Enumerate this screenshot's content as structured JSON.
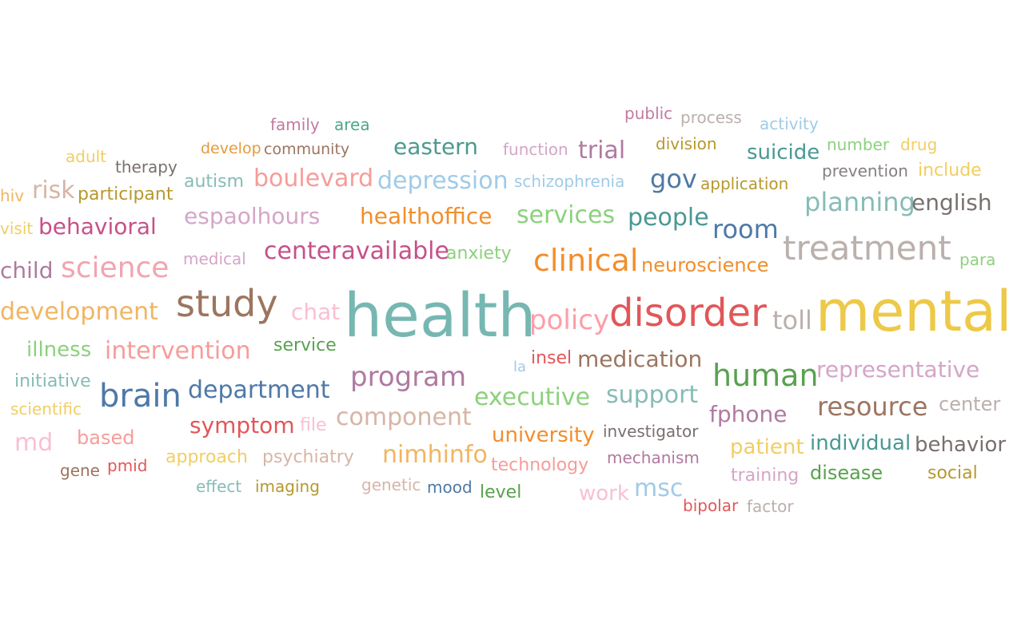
{
  "palette": {
    "teal": "#76b7b2",
    "gold": "#edc948",
    "red": "#e15759",
    "brown": "#9c755f",
    "blue": "#4e79a7",
    "orange": "#f28e2b",
    "green": "#59a14f",
    "pink": "#ff9da7",
    "purple": "#b07aa1",
    "gray": "#bab0ac"
  },
  "words": [
    {
      "text": "family",
      "color": "#c47aa0"
    },
    {
      "text": "area",
      "color": "#4ea68a"
    },
    {
      "text": "public",
      "color": "#c47aa0"
    },
    {
      "text": "process",
      "color": "#bab0ac"
    },
    {
      "text": "activity",
      "color": "#a0cbe8"
    },
    {
      "text": "adult",
      "color": "#f1ce63"
    },
    {
      "text": "develop",
      "color": "#e59b3a"
    },
    {
      "text": "community",
      "color": "#9c755f"
    },
    {
      "text": "eastern",
      "color": "#4c9a8e"
    },
    {
      "text": "function",
      "color": "#d4a6c8"
    },
    {
      "text": "trial",
      "color": "#b07aa1"
    },
    {
      "text": "division",
      "color": "#b6992d"
    },
    {
      "text": "suicide",
      "color": "#499894"
    },
    {
      "text": "number",
      "color": "#8cd17d"
    },
    {
      "text": "drug",
      "color": "#f1ce63"
    },
    {
      "text": "therapy",
      "color": "#79706e"
    },
    {
      "text": "prevention",
      "color": "#86807f"
    },
    {
      "text": "include",
      "color": "#f1ce63"
    },
    {
      "text": "hiv",
      "color": "#f1b563"
    },
    {
      "text": "risk",
      "color": "#d7b5a6"
    },
    {
      "text": "participant",
      "color": "#b6992d"
    },
    {
      "text": "autism",
      "color": "#86bcb6"
    },
    {
      "text": "boulevard",
      "color": "#f59d9a"
    },
    {
      "text": "depression",
      "color": "#a0cbe8"
    },
    {
      "text": "schizophrenia",
      "color": "#a0cbe8"
    },
    {
      "text": "gov",
      "color": "#4e79a7"
    },
    {
      "text": "application",
      "color": "#b6992d"
    },
    {
      "text": "planning",
      "color": "#86bcb6"
    },
    {
      "text": "english",
      "color": "#79706e"
    },
    {
      "text": "visit",
      "color": "#f1ce63"
    },
    {
      "text": "behavioral",
      "color": "#c7508a"
    },
    {
      "text": "espaolhours",
      "color": "#d4a6c8"
    },
    {
      "text": "healthoffice",
      "color": "#f28e2b"
    },
    {
      "text": "services",
      "color": "#8cd17d"
    },
    {
      "text": "people",
      "color": "#499894"
    },
    {
      "text": "room",
      "color": "#4e79a7"
    },
    {
      "text": "treatment",
      "color": "#bab0ac"
    },
    {
      "text": "para",
      "color": "#8cd17d"
    },
    {
      "text": "child",
      "color": "#b07aa1"
    },
    {
      "text": "science",
      "color": "#f2a4b0"
    },
    {
      "text": "medical",
      "color": "#d4a6c8"
    },
    {
      "text": "centeravailable",
      "color": "#c7508a"
    },
    {
      "text": "anxiety",
      "color": "#8cd17d"
    },
    {
      "text": "clinical",
      "color": "#f28e2b"
    },
    {
      "text": "neuroscience",
      "color": "#f28e2b"
    },
    {
      "text": "development",
      "color": "#f1b563"
    },
    {
      "text": "study",
      "color": "#9c755f"
    },
    {
      "text": "chat",
      "color": "#fabfd2"
    },
    {
      "text": "health",
      "color": "#76b7b2"
    },
    {
      "text": "policy",
      "color": "#ff9da7"
    },
    {
      "text": "disorder",
      "color": "#e15759"
    },
    {
      "text": "toll",
      "color": "#bab0ac"
    },
    {
      "text": "mental",
      "color": "#edc948"
    },
    {
      "text": "illness",
      "color": "#8cd17d"
    },
    {
      "text": "intervention",
      "color": "#f59d9a"
    },
    {
      "text": "service",
      "color": "#59a14f"
    },
    {
      "text": "la",
      "color": "#a0cbe8"
    },
    {
      "text": "insel",
      "color": "#e15759"
    },
    {
      "text": "medication",
      "color": "#9c755f"
    },
    {
      "text": "human",
      "color": "#59a14f"
    },
    {
      "text": "representative",
      "color": "#d4a6c8"
    },
    {
      "text": "initiative",
      "color": "#86bcb6"
    },
    {
      "text": "program",
      "color": "#b07aa1"
    },
    {
      "text": "brain",
      "color": "#4e79a7"
    },
    {
      "text": "department",
      "color": "#4e79a7"
    },
    {
      "text": "executive",
      "color": "#8cd17d"
    },
    {
      "text": "support",
      "color": "#86bcb6"
    },
    {
      "text": "fphone",
      "color": "#b07aa1"
    },
    {
      "text": "resource",
      "color": "#9c755f"
    },
    {
      "text": "center",
      "color": "#bab0ac"
    },
    {
      "text": "scientific",
      "color": "#f1ce63"
    },
    {
      "text": "symptom",
      "color": "#e15759"
    },
    {
      "text": "file",
      "color": "#fabfd2"
    },
    {
      "text": "component",
      "color": "#d7b5a6"
    },
    {
      "text": "university",
      "color": "#f28e2b"
    },
    {
      "text": "investigator",
      "color": "#79706e"
    },
    {
      "text": "md",
      "color": "#fabfd2"
    },
    {
      "text": "based",
      "color": "#f59d9a"
    },
    {
      "text": "patient",
      "color": "#f1ce63"
    },
    {
      "text": "individual",
      "color": "#499894"
    },
    {
      "text": "behavior",
      "color": "#79706e"
    },
    {
      "text": "nimhinfo",
      "color": "#f1b563"
    },
    {
      "text": "gene",
      "color": "#9c755f"
    },
    {
      "text": "pmid",
      "color": "#e15759"
    },
    {
      "text": "approach",
      "color": "#f1ce63"
    },
    {
      "text": "psychiatry",
      "color": "#d7b5a6"
    },
    {
      "text": "technology",
      "color": "#f59d9a"
    },
    {
      "text": "mechanism",
      "color": "#b07aa1"
    },
    {
      "text": "training",
      "color": "#d4a6c8"
    },
    {
      "text": "disease",
      "color": "#59a14f"
    },
    {
      "text": "social",
      "color": "#b6992d"
    },
    {
      "text": "effect",
      "color": "#86bcb6"
    },
    {
      "text": "imaging",
      "color": "#b6992d"
    },
    {
      "text": "genetic",
      "color": "#d7b5a6"
    },
    {
      "text": "mood",
      "color": "#4e79a7"
    },
    {
      "text": "level",
      "color": "#59a14f"
    },
    {
      "text": "work",
      "color": "#fabfd2"
    },
    {
      "text": "msc",
      "color": "#a0cbe8"
    },
    {
      "text": "bipolar",
      "color": "#e15759"
    },
    {
      "text": "factor",
      "color": "#bab0ac"
    }
  ]
}
